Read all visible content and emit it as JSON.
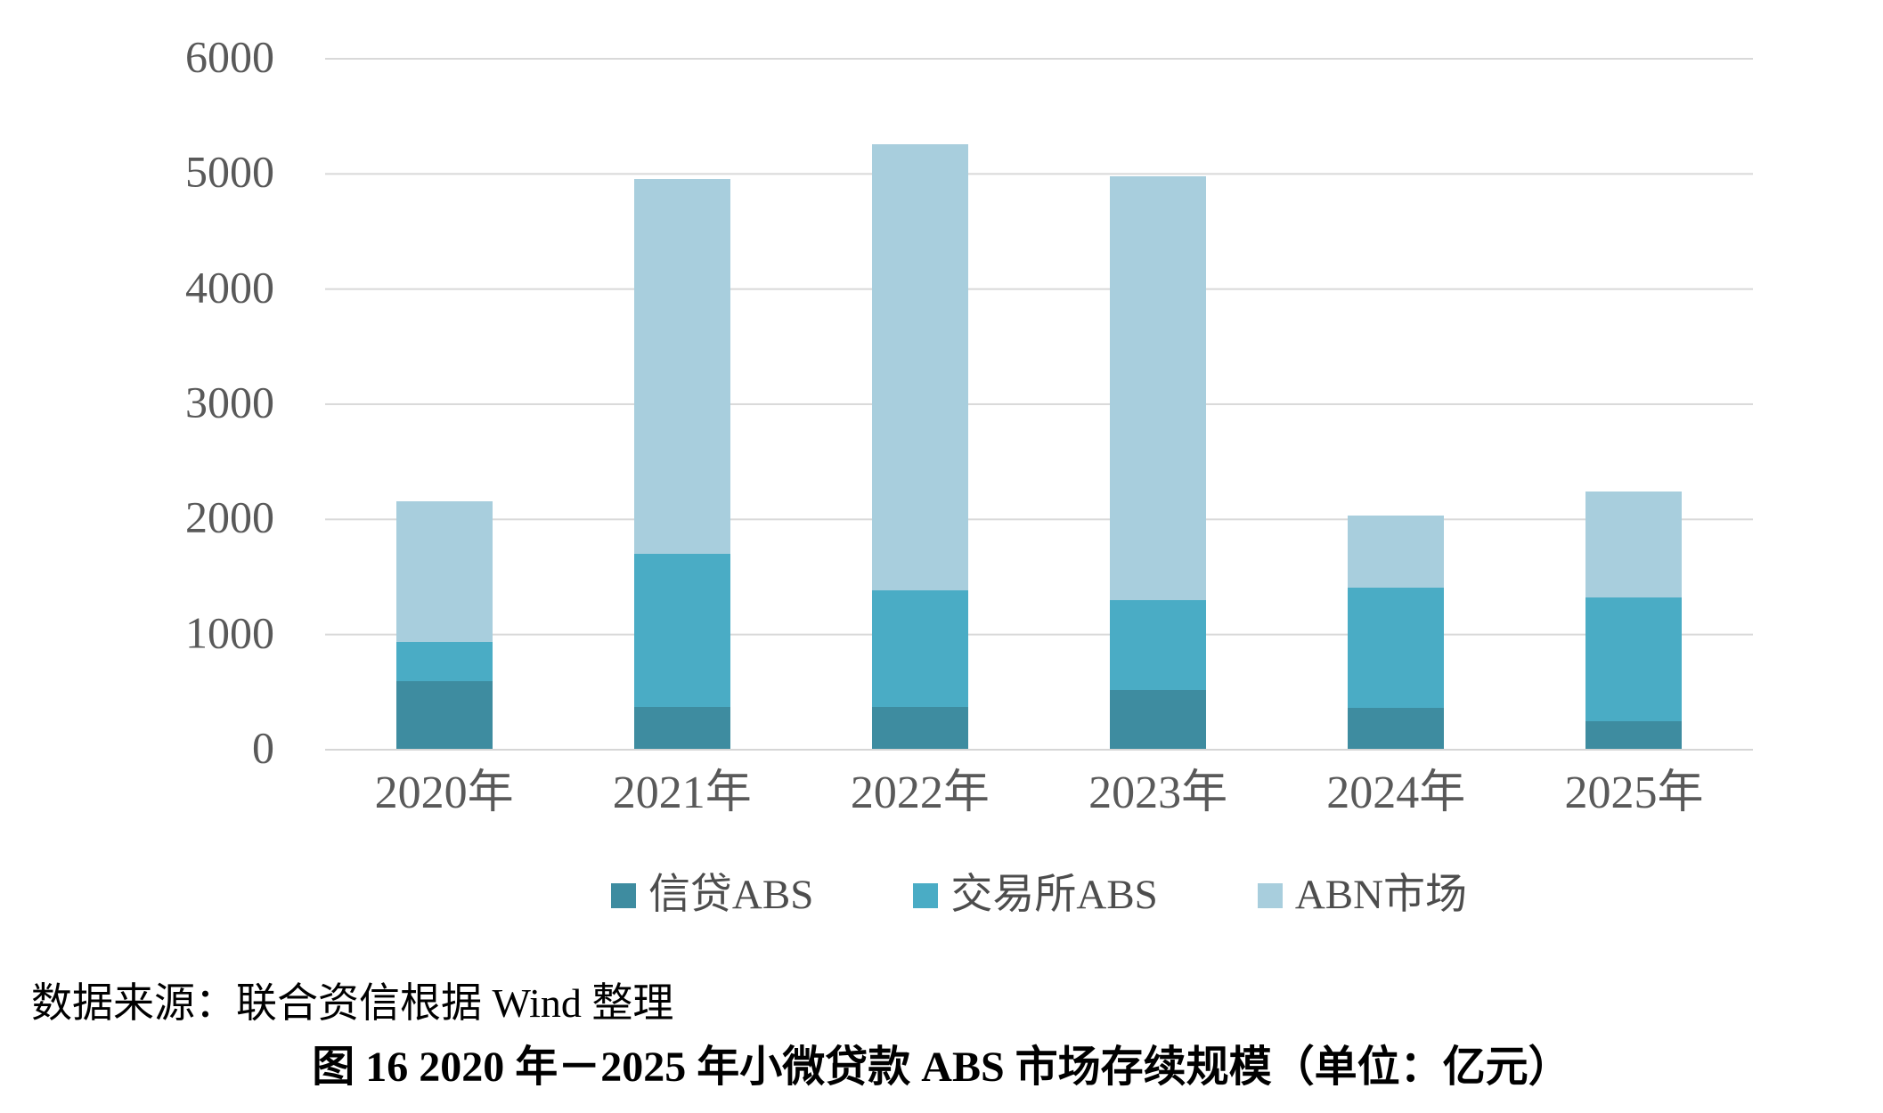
{
  "chart_data": {
    "type": "bar",
    "stacked": true,
    "title": "图 16  2020 年－2025 年小微贷款 ABS 市场存续规模（单位：亿元）",
    "categories": [
      "2020年",
      "2021年",
      "2022年",
      "2023年",
      "2024年",
      "2025年"
    ],
    "series": [
      {
        "name": "信贷ABS",
        "color": "#3E8CA0",
        "values": [
          590,
          360,
          360,
          510,
          355,
          240
        ]
      },
      {
        "name": "交易所ABS",
        "color": "#4AACC5",
        "values": [
          340,
          1330,
          1020,
          780,
          1045,
          1075
        ]
      },
      {
        "name": "ABN市场",
        "color": "#A8CEDD",
        "values": [
          1220,
          3260,
          3870,
          3680,
          625,
          920
        ]
      }
    ],
    "totals": [
      2150,
      4950,
      5250,
      4970,
      2025,
      2235
    ],
    "ylim": [
      0,
      6000
    ],
    "y_ticks": [
      0,
      1000,
      2000,
      3000,
      4000,
      5000,
      6000
    ],
    "grid": true,
    "legend_position": "bottom",
    "gridline_color": "#D9D9D9",
    "axis_label_color": "#595959"
  },
  "source_note": "数据来源：联合资信根据 Wind 整理",
  "caption": "图 16  2020 年－2025 年小微贷款 ABS 市场存续规模（单位：亿元）"
}
